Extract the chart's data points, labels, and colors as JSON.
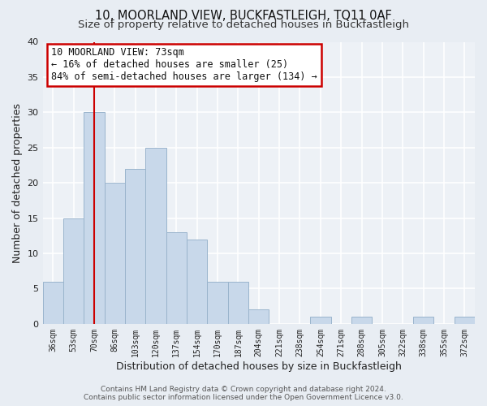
{
  "title": "10, MOORLAND VIEW, BUCKFASTLEIGH, TQ11 0AF",
  "subtitle": "Size of property relative to detached houses in Buckfastleigh",
  "xlabel": "Distribution of detached houses by size in Buckfastleigh",
  "ylabel": "Number of detached properties",
  "bin_labels": [
    "36sqm",
    "53sqm",
    "70sqm",
    "86sqm",
    "103sqm",
    "120sqm",
    "137sqm",
    "154sqm",
    "170sqm",
    "187sqm",
    "204sqm",
    "221sqm",
    "238sqm",
    "254sqm",
    "271sqm",
    "288sqm",
    "305sqm",
    "322sqm",
    "338sqm",
    "355sqm",
    "372sqm"
  ],
  "bar_heights": [
    6,
    15,
    30,
    20,
    22,
    25,
    13,
    12,
    6,
    6,
    2,
    0,
    0,
    1,
    0,
    1,
    0,
    0,
    1,
    0,
    1
  ],
  "bar_color": "#c8d8ea",
  "bar_edge_color": "#9ab4cc",
  "property_line_x": 2,
  "property_line_color": "#cc0000",
  "annotation_line1": "10 MOORLAND VIEW: 73sqm",
  "annotation_line2": "← 16% of detached houses are smaller (25)",
  "annotation_line3": "84% of semi-detached houses are larger (134) →",
  "annotation_box_color": "#ffffff",
  "annotation_box_edge_color": "#cc0000",
  "ylim": [
    0,
    40
  ],
  "yticks": [
    0,
    5,
    10,
    15,
    20,
    25,
    30,
    35,
    40
  ],
  "footer_text": "Contains HM Land Registry data © Crown copyright and database right 2024.\nContains public sector information licensed under the Open Government Licence v3.0.",
  "bg_color": "#e8edf3",
  "plot_bg_color": "#edf1f6",
  "grid_color": "#ffffff",
  "title_fontsize": 10.5,
  "subtitle_fontsize": 9.5,
  "annot_fontsize": 8.5,
  "xlabel_fontsize": 9,
  "ylabel_fontsize": 9
}
